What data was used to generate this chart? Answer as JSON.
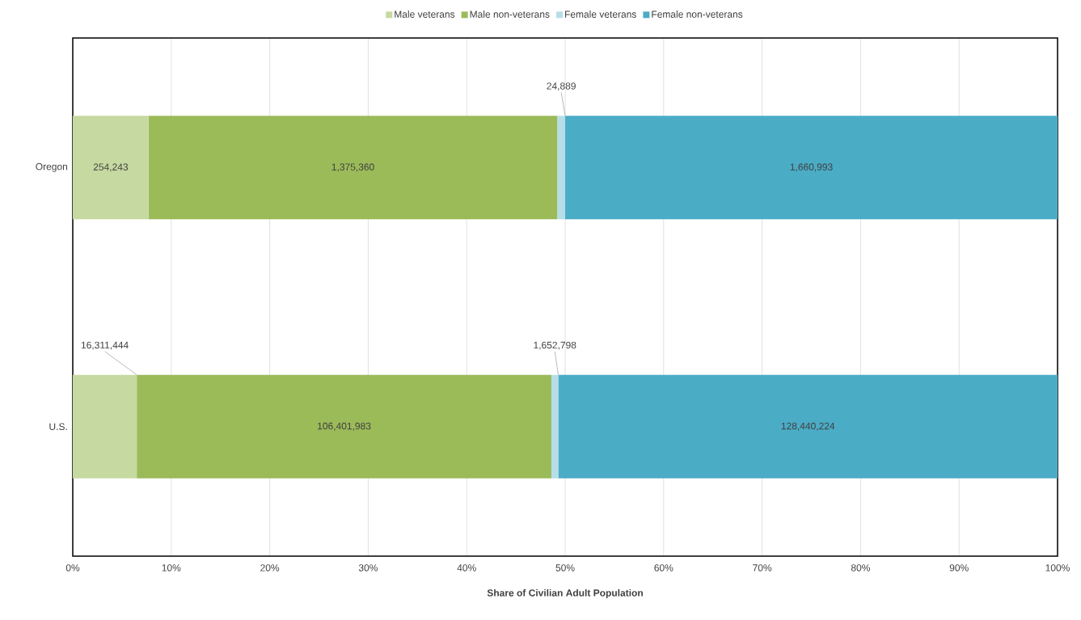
{
  "chart_data": {
    "type": "bar",
    "orientation": "horizontal",
    "stacked": true,
    "xlabel": "Share of Civilian Adult Population",
    "categories": [
      "Oregon",
      "U.S."
    ],
    "series": [
      {
        "name": "Male veterans",
        "color": "#c6d9a0",
        "values": [
          7.7,
          6.5
        ]
      },
      {
        "name": "Male non-veterans",
        "color": "#9bbb59",
        "values": [
          41.5,
          42.1
        ]
      },
      {
        "name": "Female veterans",
        "color": "#b7dee8",
        "values": [
          0.8,
          0.7
        ]
      },
      {
        "name": "Female non-veterans",
        "color": "#4bacc6",
        "values": [
          50.0,
          50.7
        ]
      }
    ],
    "annotations": [
      "254,243",
      "1,375,360",
      {
        "text": "24,889",
        "x": 50.0
      },
      "1,660,993",
      {
        "text": "16,311,444",
        "x": 6.5
      },
      "106,401,983",
      {
        "text": "1,652,798",
        "x": 49.3
      },
      "128,440,224"
    ],
    "xlim": [
      0,
      100
    ],
    "xticks": [
      {
        "value": 0,
        "label": "0%"
      },
      {
        "value": 10,
        "label": "10%"
      },
      {
        "value": 20,
        "label": "20%"
      },
      {
        "value": 30,
        "label": "30%"
      },
      {
        "value": 40,
        "label": "40%"
      },
      {
        "value": 50,
        "label": "50%"
      },
      {
        "value": 60,
        "label": "60%"
      },
      {
        "value": 70,
        "label": "70%"
      },
      {
        "value": 80,
        "label": "80%"
      },
      {
        "value": 90,
        "label": "90%"
      },
      {
        "value": 100,
        "label": "100%"
      }
    ],
    "grid": "x",
    "legend": "top"
  }
}
